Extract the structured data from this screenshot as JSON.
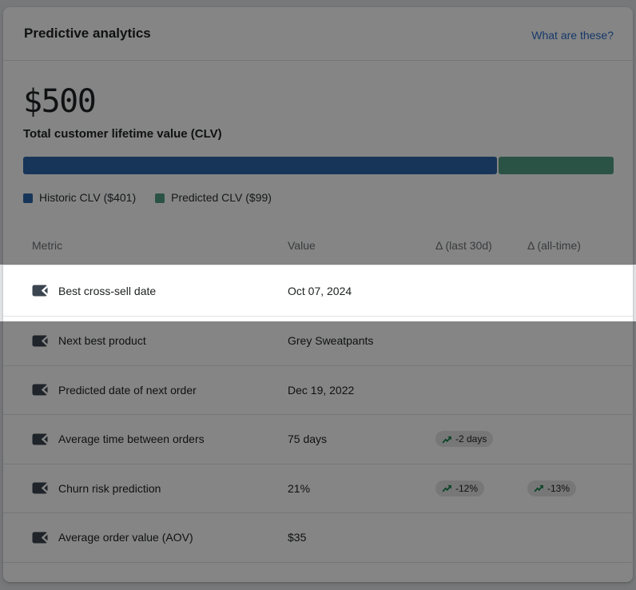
{
  "header": {
    "title": "Predictive analytics",
    "link_label": "What are these?"
  },
  "clv": {
    "total_value": "$500",
    "total_label": "Total customer lifetime value (CLV)",
    "historic_percent": 80.2,
    "predicted_percent": 19.8,
    "legend": [
      {
        "label": "Historic CLV ($401)",
        "color": "#2d67a9"
      },
      {
        "label": "Predicted CLV ($99)",
        "color": "#529f86"
      }
    ]
  },
  "chart_data": {
    "type": "bar",
    "title": "Total customer lifetime value (CLV)",
    "categories": [
      "Historic CLV",
      "Predicted CLV"
    ],
    "values": [
      401,
      99
    ],
    "total": 500,
    "legend_position": "bottom"
  },
  "table": {
    "columns": [
      "Metric",
      "Value",
      "Δ (last 30d)",
      "Δ (all-time)"
    ],
    "rows": [
      {
        "metric": "Best cross-sell date",
        "value": "Oct 07, 2024",
        "delta_30d": "",
        "delta_all": "",
        "highlighted": true
      },
      {
        "metric": "Next best product",
        "value": "Grey Sweatpants",
        "delta_30d": "",
        "delta_all": "",
        "highlighted": false
      },
      {
        "metric": "Predicted date of next order",
        "value": "Dec 19, 2022",
        "delta_30d": "",
        "delta_all": "",
        "highlighted": false
      },
      {
        "metric": "Average time between orders",
        "value": "75 days",
        "delta_30d": "-2 days",
        "delta_all": "",
        "highlighted": false
      },
      {
        "metric": "Churn risk prediction",
        "value": "21%",
        "delta_30d": "-12%",
        "delta_all": "-13%",
        "highlighted": false
      },
      {
        "metric": "Average order value (AOV)",
        "value": "$35",
        "delta_30d": "",
        "delta_all": "",
        "highlighted": false
      }
    ]
  },
  "colors": {
    "historic_bar": "#2d67a9",
    "predicted_bar": "#529f86",
    "link": "#2c6ecb",
    "badge_bg": "#e4e5e7",
    "trend_arrow_green": "#17824b",
    "metric_icon": "#3a4550",
    "divider": "#e1e3e5",
    "dim_overlay": "rgba(0,0,0,0.48)"
  }
}
